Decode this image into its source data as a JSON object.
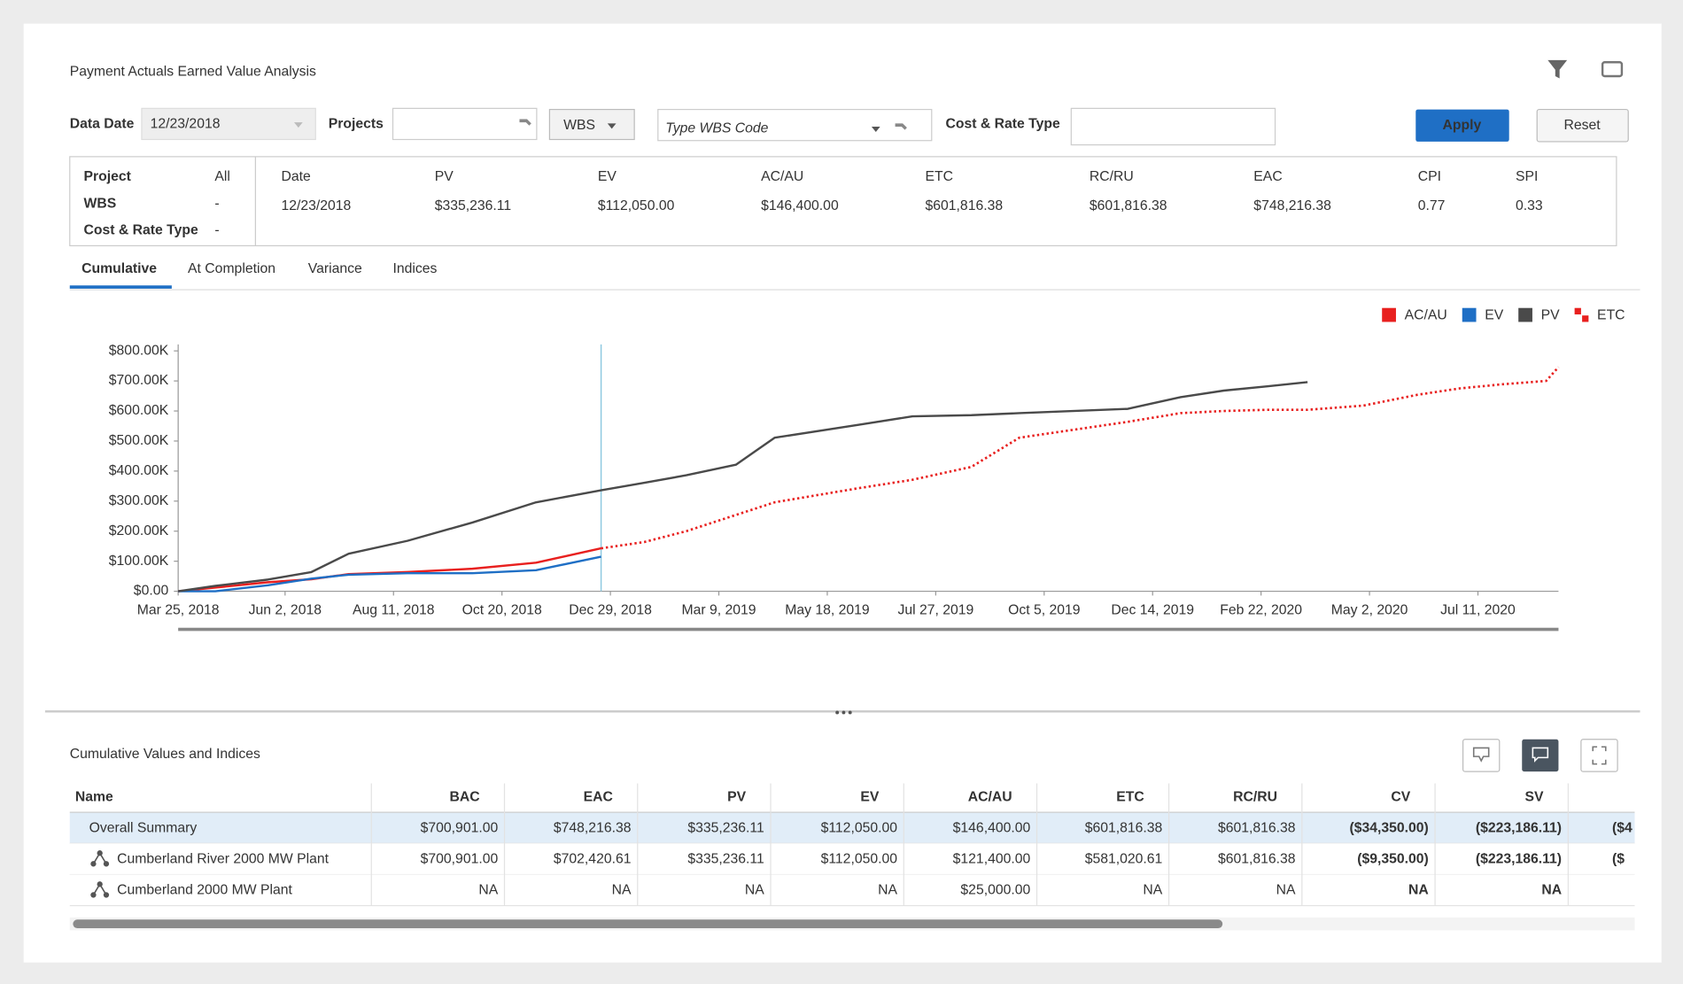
{
  "header": {
    "title": "Payment Actuals Earned Value Analysis",
    "filters": {
      "data_date_label": "Data Date",
      "data_date": "12/23/2018",
      "projects_label": "Projects",
      "wbs": "WBS",
      "wbs_placeholder": "Type WBS Code",
      "cost_rate_label": "Cost & Rate Type",
      "apply": "Apply",
      "reset": "Reset"
    }
  },
  "summary": {
    "context": [
      {
        "label": "Project",
        "value": "All"
      },
      {
        "label": "WBS",
        "value": "-"
      },
      {
        "label": "Cost & Rate Type",
        "value": "-"
      }
    ],
    "metrics": [
      {
        "label": "Date",
        "value": "12/23/2018"
      },
      {
        "label": "PV",
        "value": "$335,236.11"
      },
      {
        "label": "EV",
        "value": "$112,050.00"
      },
      {
        "label": "AC/AU",
        "value": "$146,400.00"
      },
      {
        "label": "ETC",
        "value": "$601,816.38"
      },
      {
        "label": "RC/RU",
        "value": "$601,816.38"
      },
      {
        "label": "EAC",
        "value": "$748,216.38"
      },
      {
        "label": "CPI",
        "value": "0.77"
      },
      {
        "label": "SPI",
        "value": "0.33"
      }
    ]
  },
  "tabs": [
    "Cumulative",
    "At Completion",
    "Variance",
    "Indices"
  ],
  "chart_data": {
    "type": "line",
    "legend": "top-right",
    "x": [
      "2018-03-25",
      "2018-04-18",
      "2018-05-22",
      "2018-06-19",
      "2018-07-13",
      "2018-08-20",
      "2018-10-01",
      "2018-11-11",
      "2018-12-23",
      "2019-01-20",
      "2019-02-16",
      "2019-03-20",
      "2019-04-14",
      "2019-06-07",
      "2019-07-12",
      "2019-08-19",
      "2019-09-19",
      "2019-11-28",
      "2020-01-01",
      "2020-01-29",
      "2020-02-26",
      "2020-03-23",
      "2020-04-28",
      "2020-06-02",
      "2020-06-29",
      "2020-07-27",
      "2020-08-24",
      "2020-09-01"
    ],
    "xlim": [
      "2018-03-25",
      "2020-09-01"
    ],
    "xticks": [
      {
        "value": "2018-03-25",
        "label": "Mar 25, 2018"
      },
      {
        "value": "2018-06-02",
        "label": "Jun 2, 2018"
      },
      {
        "value": "2018-08-11",
        "label": "Aug 11, 2018"
      },
      {
        "value": "2018-10-20",
        "label": "Oct 20, 2018"
      },
      {
        "value": "2018-12-29",
        "label": "Dec 29, 2018"
      },
      {
        "value": "2019-03-09",
        "label": "Mar 9, 2019"
      },
      {
        "value": "2019-05-18",
        "label": "May 18, 2019"
      },
      {
        "value": "2019-07-27",
        "label": "Jul 27, 2019"
      },
      {
        "value": "2019-10-05",
        "label": "Oct 5, 2019"
      },
      {
        "value": "2019-12-14",
        "label": "Dec 14, 2019"
      },
      {
        "value": "2020-02-22",
        "label": "Feb 22, 2020"
      },
      {
        "value": "2020-05-02",
        "label": "May 2, 2020"
      },
      {
        "value": "2020-07-11",
        "label": "Jul 11, 2020"
      }
    ],
    "ylim": [
      0,
      800000
    ],
    "yticks": [
      {
        "value": 0,
        "label": "$0.00"
      },
      {
        "value": 100000,
        "label": "$100.00K"
      },
      {
        "value": 200000,
        "label": "$200.00K"
      },
      {
        "value": 300000,
        "label": "$300.00K"
      },
      {
        "value": 400000,
        "label": "$400.00K"
      },
      {
        "value": 500000,
        "label": "$500.00K"
      },
      {
        "value": 600000,
        "label": "$600.00K"
      },
      {
        "value": 700000,
        "label": "$700.00K"
      },
      {
        "value": 800000,
        "label": "$800.00K"
      }
    ],
    "reference_date": "2018-12-23",
    "series": [
      {
        "name": "AC/AU",
        "color": "#e8201f",
        "values": [
          0,
          12000,
          30000,
          40000,
          57000,
          64000,
          75000,
          95000,
          143000,
          null,
          null,
          null,
          null,
          null,
          null,
          null,
          null,
          null,
          null,
          null,
          null,
          null,
          null,
          null,
          null,
          null,
          null,
          null
        ]
      },
      {
        "name": "EV",
        "color": "#1f6fc5",
        "values": [
          0,
          0,
          20000,
          42000,
          55000,
          60000,
          60000,
          70000,
          115000,
          null,
          null,
          null,
          null,
          null,
          null,
          null,
          null,
          null,
          null,
          null,
          null,
          null,
          null,
          null,
          null,
          null,
          null,
          null
        ]
      },
      {
        "name": "PV",
        "color": "#4a4a4a",
        "values": [
          0,
          18000,
          39000,
          64000,
          125000,
          168000,
          229000,
          296000,
          336000,
          361000,
          386000,
          421000,
          511000,
          554000,
          582000,
          586000,
          593000,
          607000,
          646000,
          668000,
          682000,
          696000,
          null,
          null,
          null,
          null,
          null,
          null
        ]
      },
      {
        "name": "ETC",
        "color": "#e8201f",
        "line_style": "dotted",
        "values": [
          null,
          null,
          null,
          null,
          null,
          null,
          null,
          null,
          143000,
          164000,
          200000,
          254000,
          296000,
          343000,
          371000,
          414000,
          511000,
          564000,
          593000,
          600000,
          604000,
          604000,
          618000,
          654000,
          675000,
          689000,
          700000,
          746000
        ]
      }
    ]
  },
  "table": {
    "title": "Cumulative Values and Indices",
    "columns": [
      "Name",
      "BAC",
      "EAC",
      "PV",
      "EV",
      "AC/AU",
      "ETC",
      "RC/RU",
      "CV",
      "SV"
    ],
    "rows": [
      {
        "cells": [
          "Overall Summary",
          "$700,901.00",
          "$748,216.38",
          "$335,236.11",
          "$112,050.00",
          "$146,400.00",
          "$601,816.38",
          "$601,816.38",
          "($34,350.00)",
          "($223,186.11)"
        ],
        "clipped": "($4"
      },
      {
        "cells": [
          "Cumberland River 2000 MW Plant",
          "$700,901.00",
          "$702,420.61",
          "$335,236.11",
          "$112,050.00",
          "$121,400.00",
          "$581,020.61",
          "$601,816.38",
          "($9,350.00)",
          "($223,186.11)"
        ],
        "clipped": "($"
      },
      {
        "cells": [
          "Cumberland 2000 MW Plant",
          "NA",
          "NA",
          "NA",
          "NA",
          "$25,000.00",
          "NA",
          "NA",
          "NA",
          "NA"
        ]
      }
    ]
  }
}
